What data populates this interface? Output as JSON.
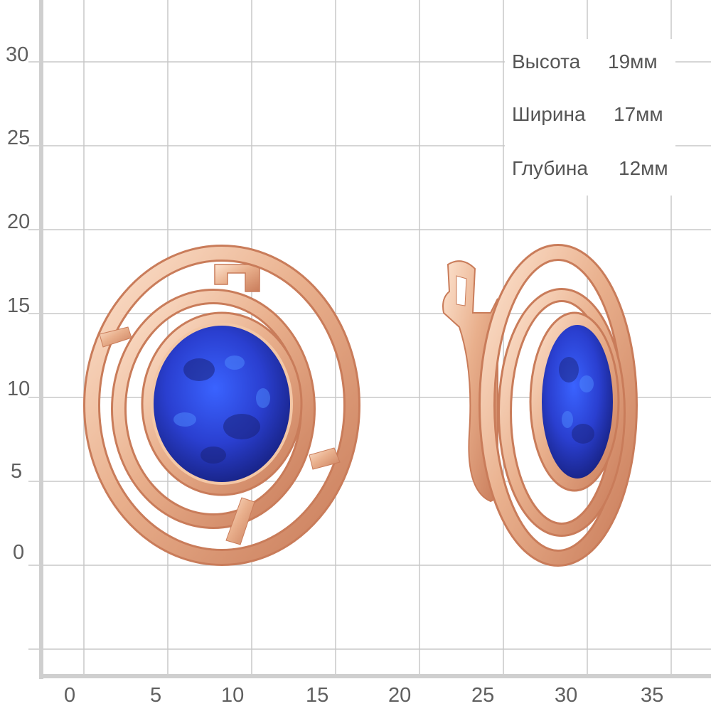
{
  "scale": {
    "y_ticks": [
      "30",
      "25",
      "20",
      "15",
      "10",
      "5",
      "0"
    ],
    "x_ticks": [
      "0",
      "5",
      "10",
      "15",
      "20",
      "25",
      "30",
      "35"
    ]
  },
  "dimensions": [
    {
      "label": "Высота",
      "value": "19мм"
    },
    {
      "label": "Ширина",
      "value": "17мм"
    },
    {
      "label": "Глубина",
      "value": "12мм"
    }
  ],
  "colors": {
    "gold": "#e9b08d",
    "gold_dark": "#c97c5a",
    "gold_light": "#fde3cf",
    "stone": "#2a3fd0",
    "grid": "#c8c8c8"
  },
  "product": {
    "type": "earrings",
    "metal": "rose gold",
    "stone": "blue opal"
  }
}
